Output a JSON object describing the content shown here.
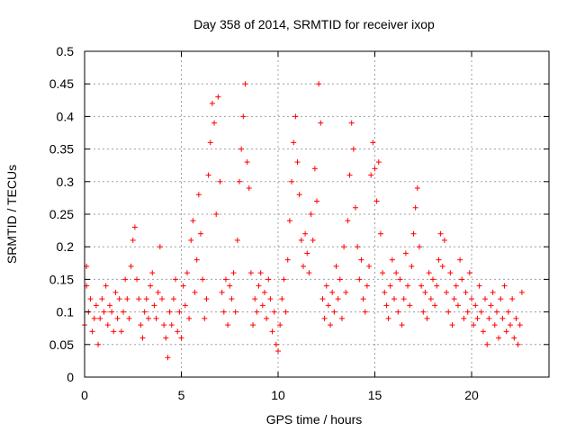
{
  "chart_data": {
    "type": "scatter",
    "title": "Day 358 of 2014, SRMTID for receiver ixop",
    "xlabel": "GPS time / hours",
    "ylabel": "SRMTID / TECUs",
    "xlim": [
      0,
      24
    ],
    "ylim": [
      0,
      0.5
    ],
    "xticks": [
      0,
      5,
      10,
      15,
      20
    ],
    "yticks": [
      0,
      0.05,
      0.1,
      0.15,
      0.2,
      0.25,
      0.3,
      0.35,
      0.4,
      0.45,
      0.5
    ],
    "xtick_labels": [
      "0",
      "5",
      "10",
      "15",
      "20"
    ],
    "ytick_labels": [
      "0",
      "0.05",
      "0.1",
      "0.15",
      "0.2",
      "0.25",
      "0.3",
      "0.35",
      "0.4",
      "0.45",
      "0.5"
    ],
    "grid": true,
    "marker": "+",
    "color": "#ff0000",
    "x_data_range": [
      0,
      22.6
    ],
    "series": [
      {
        "name": "SRMTID",
        "points": [
          [
            0.0,
            0.08
          ],
          [
            0.1,
            0.14
          ],
          [
            0.1,
            0.17
          ],
          [
            0.2,
            0.1
          ],
          [
            0.3,
            0.12
          ],
          [
            0.4,
            0.07
          ],
          [
            0.5,
            0.09
          ],
          [
            0.6,
            0.11
          ],
          [
            0.7,
            0.05
          ],
          [
            0.8,
            0.09
          ],
          [
            0.9,
            0.12
          ],
          [
            1.0,
            0.1
          ],
          [
            1.1,
            0.14
          ],
          [
            1.2,
            0.08
          ],
          [
            1.3,
            0.11
          ],
          [
            1.4,
            0.1
          ],
          [
            1.5,
            0.07
          ],
          [
            1.6,
            0.13
          ],
          [
            1.7,
            0.09
          ],
          [
            1.8,
            0.12
          ],
          [
            1.9,
            0.07
          ],
          [
            2.0,
            0.1
          ],
          [
            2.1,
            0.15
          ],
          [
            2.2,
            0.12
          ],
          [
            2.3,
            0.09
          ],
          [
            2.4,
            0.17
          ],
          [
            2.5,
            0.21
          ],
          [
            2.6,
            0.23
          ],
          [
            2.7,
            0.15
          ],
          [
            2.8,
            0.12
          ],
          [
            2.9,
            0.08
          ],
          [
            3.0,
            0.06
          ],
          [
            3.1,
            0.1
          ],
          [
            3.2,
            0.12
          ],
          [
            3.3,
            0.09
          ],
          [
            3.4,
            0.14
          ],
          [
            3.5,
            0.16
          ],
          [
            3.6,
            0.11
          ],
          [
            3.7,
            0.09
          ],
          [
            3.8,
            0.13
          ],
          [
            3.9,
            0.2
          ],
          [
            4.0,
            0.12
          ],
          [
            4.1,
            0.08
          ],
          [
            4.2,
            0.06
          ],
          [
            4.3,
            0.03
          ],
          [
            4.4,
            0.1
          ],
          [
            4.5,
            0.08
          ],
          [
            4.6,
            0.12
          ],
          [
            4.7,
            0.15
          ],
          [
            4.8,
            0.07
          ],
          [
            4.9,
            0.1
          ],
          [
            5.0,
            0.06
          ],
          [
            5.1,
            0.14
          ],
          [
            5.2,
            0.11
          ],
          [
            5.3,
            0.16
          ],
          [
            5.4,
            0.09
          ],
          [
            5.5,
            0.21
          ],
          [
            5.6,
            0.24
          ],
          [
            5.7,
            0.13
          ],
          [
            5.8,
            0.18
          ],
          [
            5.9,
            0.28
          ],
          [
            6.0,
            0.22
          ],
          [
            6.1,
            0.15
          ],
          [
            6.2,
            0.09
          ],
          [
            6.3,
            0.12
          ],
          [
            6.4,
            0.31
          ],
          [
            6.5,
            0.36
          ],
          [
            6.6,
            0.42
          ],
          [
            6.7,
            0.39
          ],
          [
            6.8,
            0.25
          ],
          [
            6.9,
            0.43
          ],
          [
            7.0,
            0.3
          ],
          [
            7.1,
            0.13
          ],
          [
            7.2,
            0.1
          ],
          [
            7.3,
            0.15
          ],
          [
            7.4,
            0.08
          ],
          [
            7.5,
            0.14
          ],
          [
            7.6,
            0.12
          ],
          [
            7.7,
            0.16
          ],
          [
            7.8,
            0.1
          ],
          [
            7.9,
            0.21
          ],
          [
            8.0,
            0.3
          ],
          [
            8.1,
            0.35
          ],
          [
            8.2,
            0.4
          ],
          [
            8.3,
            0.45
          ],
          [
            8.4,
            0.33
          ],
          [
            8.5,
            0.29
          ],
          [
            8.6,
            0.16
          ],
          [
            8.7,
            0.08
          ],
          [
            8.8,
            0.12
          ],
          [
            8.9,
            0.1
          ],
          [
            9.0,
            0.14
          ],
          [
            9.1,
            0.16
          ],
          [
            9.2,
            0.11
          ],
          [
            9.3,
            0.13
          ],
          [
            9.4,
            0.09
          ],
          [
            9.5,
            0.15
          ],
          [
            9.6,
            0.12
          ],
          [
            9.7,
            0.07
          ],
          [
            9.8,
            0.1
          ],
          [
            9.9,
            0.05
          ],
          [
            10.0,
            0.04
          ],
          [
            10.1,
            0.08
          ],
          [
            10.2,
            0.12
          ],
          [
            10.3,
            0.15
          ],
          [
            10.4,
            0.1
          ],
          [
            10.5,
            0.18
          ],
          [
            10.6,
            0.24
          ],
          [
            10.7,
            0.3
          ],
          [
            10.8,
            0.36
          ],
          [
            10.9,
            0.4
          ],
          [
            11.0,
            0.33
          ],
          [
            11.1,
            0.28
          ],
          [
            11.2,
            0.21
          ],
          [
            11.3,
            0.17
          ],
          [
            11.4,
            0.22
          ],
          [
            11.5,
            0.19
          ],
          [
            11.6,
            0.16
          ],
          [
            11.7,
            0.25
          ],
          [
            11.8,
            0.21
          ],
          [
            11.9,
            0.32
          ],
          [
            12.0,
            0.27
          ],
          [
            12.1,
            0.45
          ],
          [
            12.2,
            0.39
          ],
          [
            12.3,
            0.12
          ],
          [
            12.4,
            0.09
          ],
          [
            12.5,
            0.14
          ],
          [
            12.6,
            0.11
          ],
          [
            12.7,
            0.08
          ],
          [
            12.8,
            0.13
          ],
          [
            12.9,
            0.1
          ],
          [
            13.0,
            0.17
          ],
          [
            13.1,
            0.12
          ],
          [
            13.2,
            0.15
          ],
          [
            13.3,
            0.09
          ],
          [
            13.4,
            0.2
          ],
          [
            13.5,
            0.13
          ],
          [
            13.6,
            0.24
          ],
          [
            13.7,
            0.31
          ],
          [
            13.8,
            0.39
          ],
          [
            13.9,
            0.35
          ],
          [
            14.0,
            0.26
          ],
          [
            14.1,
            0.2
          ],
          [
            14.2,
            0.15
          ],
          [
            14.3,
            0.18
          ],
          [
            14.4,
            0.12
          ],
          [
            14.5,
            0.1
          ],
          [
            14.6,
            0.14
          ],
          [
            14.7,
            0.17
          ],
          [
            14.8,
            0.31
          ],
          [
            14.9,
            0.36
          ],
          [
            15.0,
            0.32
          ],
          [
            15.1,
            0.27
          ],
          [
            15.2,
            0.33
          ],
          [
            15.3,
            0.22
          ],
          [
            15.4,
            0.16
          ],
          [
            15.5,
            0.13
          ],
          [
            15.6,
            0.11
          ],
          [
            15.7,
            0.09
          ],
          [
            15.8,
            0.14
          ],
          [
            15.9,
            0.18
          ],
          [
            16.0,
            0.12
          ],
          [
            16.1,
            0.16
          ],
          [
            16.2,
            0.1
          ],
          [
            16.3,
            0.15
          ],
          [
            16.4,
            0.08
          ],
          [
            16.5,
            0.12
          ],
          [
            16.6,
            0.19
          ],
          [
            16.7,
            0.14
          ],
          [
            16.8,
            0.11
          ],
          [
            16.9,
            0.17
          ],
          [
            17.0,
            0.22
          ],
          [
            17.1,
            0.26
          ],
          [
            17.2,
            0.29
          ],
          [
            17.3,
            0.2
          ],
          [
            17.4,
            0.14
          ],
          [
            17.5,
            0.1
          ],
          [
            17.6,
            0.13
          ],
          [
            17.7,
            0.09
          ],
          [
            17.8,
            0.16
          ],
          [
            17.9,
            0.12
          ],
          [
            18.0,
            0.15
          ],
          [
            18.1,
            0.11
          ],
          [
            18.2,
            0.14
          ],
          [
            18.3,
            0.18
          ],
          [
            18.4,
            0.22
          ],
          [
            18.5,
            0.17
          ],
          [
            18.6,
            0.21
          ],
          [
            18.7,
            0.13
          ],
          [
            18.8,
            0.1
          ],
          [
            18.9,
            0.16
          ],
          [
            19.0,
            0.08
          ],
          [
            19.1,
            0.12
          ],
          [
            19.2,
            0.14
          ],
          [
            19.3,
            0.11
          ],
          [
            19.4,
            0.18
          ],
          [
            19.5,
            0.15
          ],
          [
            19.6,
            0.09
          ],
          [
            19.7,
            0.13
          ],
          [
            19.8,
            0.1
          ],
          [
            19.9,
            0.16
          ],
          [
            20.0,
            0.12
          ],
          [
            20.1,
            0.08
          ],
          [
            20.2,
            0.11
          ],
          [
            20.3,
            0.09
          ],
          [
            20.4,
            0.14
          ],
          [
            20.5,
            0.1
          ],
          [
            20.6,
            0.07
          ],
          [
            20.7,
            0.12
          ],
          [
            20.8,
            0.05
          ],
          [
            20.9,
            0.09
          ],
          [
            21.0,
            0.11
          ],
          [
            21.1,
            0.13
          ],
          [
            21.2,
            0.08
          ],
          [
            21.3,
            0.1
          ],
          [
            21.4,
            0.06
          ],
          [
            21.5,
            0.12
          ],
          [
            21.6,
            0.09
          ],
          [
            21.7,
            0.14
          ],
          [
            21.8,
            0.07
          ],
          [
            21.9,
            0.1
          ],
          [
            22.0,
            0.08
          ],
          [
            22.1,
            0.12
          ],
          [
            22.2,
            0.06
          ],
          [
            22.3,
            0.09
          ],
          [
            22.4,
            0.05
          ],
          [
            22.5,
            0.08
          ],
          [
            22.6,
            0.13
          ]
        ]
      }
    ]
  }
}
